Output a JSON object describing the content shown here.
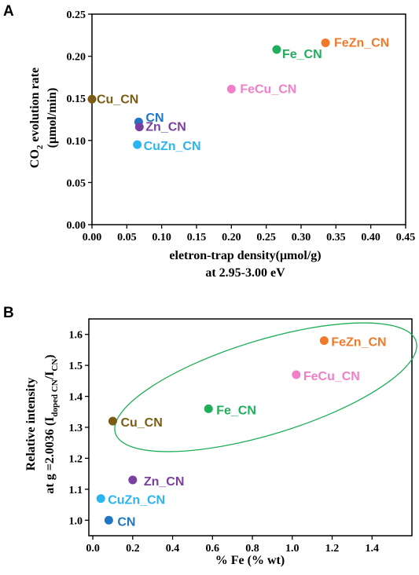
{
  "chart_data": [
    {
      "panel": "A",
      "type": "scatter",
      "xlabel": "eletron-trap density(μmol/g)",
      "xlabel_line2": "at 2.95-3.00 eV",
      "ylabel_line1_main": "CO",
      "ylabel_line1_sub": "2",
      "ylabel_line1_tail": " evolution rate",
      "ylabel_line2": "(μmol/min)",
      "xlim": [
        0,
        0.45
      ],
      "ylim": [
        0,
        0.25
      ],
      "xticks": [
        "0.00",
        "0.05",
        "0.10",
        "0.15",
        "0.20",
        "0.25",
        "0.30",
        "0.35",
        "0.40",
        "0.45"
      ],
      "yticks": [
        "0.00",
        "0.05",
        "0.10",
        "0.15",
        "0.20",
        "0.25"
      ],
      "points": [
        {
          "label": "Cu_CN",
          "x": 0.0,
          "y": 0.149,
          "color": "#7a5c14"
        },
        {
          "label": "CN",
          "x": 0.067,
          "y": 0.122,
          "color": "#1f77c4"
        },
        {
          "label": "Zn_CN",
          "x": 0.068,
          "y": 0.116,
          "color": "#7b3fa0"
        },
        {
          "label": "CuZn_CN",
          "x": 0.065,
          "y": 0.095,
          "color": "#2ab5f0"
        },
        {
          "label": "FeCu_CN",
          "x": 0.2,
          "y": 0.161,
          "color": "#f27ec8"
        },
        {
          "label": "Fe_CN",
          "x": 0.265,
          "y": 0.208,
          "color": "#1fae5a"
        },
        {
          "label": "FeZn_CN",
          "x": 0.335,
          "y": 0.216,
          "color": "#f07a2a"
        }
      ]
    },
    {
      "panel": "B",
      "type": "scatter",
      "xlabel": "% Fe (% wt)",
      "ylabel_line1": "Relative intensity",
      "ylabel_line2_main": "at g =2.0036 (I",
      "ylabel_line2_sub1": "doped CN",
      "ylabel_line2_mid": "/I",
      "ylabel_line2_sub2": "CN",
      "ylabel_line2_tail": ")",
      "xlim": [
        -0.02,
        1.6
      ],
      "ylim": [
        0.95,
        1.65
      ],
      "xticks": [
        "0.0",
        "0.2",
        "0.4",
        "0.6",
        "0.8",
        "1.0",
        "1.2",
        "1.4"
      ],
      "yticks": [
        "1.0",
        "1.1",
        "1.2",
        "1.3",
        "1.4",
        "1.5",
        "1.6"
      ],
      "points": [
        {
          "label": "FeZn_CN",
          "x": 1.16,
          "y": 1.58,
          "color": "#f07a2a"
        },
        {
          "label": "FeCu_CN",
          "x": 1.02,
          "y": 1.47,
          "color": "#f27ec8"
        },
        {
          "label": "Fe_CN",
          "x": 0.58,
          "y": 1.36,
          "color": "#1fae5a"
        },
        {
          "label": "Cu_CN",
          "x": 0.1,
          "y": 1.32,
          "color": "#7a5c14"
        },
        {
          "label": "Zn_CN",
          "x": 0.2,
          "y": 1.13,
          "color": "#7b3fa0"
        },
        {
          "label": "CuZn_CN",
          "x": 0.04,
          "y": 1.07,
          "color": "#2ab5f0"
        },
        {
          "label": "CN",
          "x": 0.08,
          "y": 1.0,
          "color": "#1f77c4"
        }
      ],
      "annotation": {
        "shape": "ellipse",
        "color": "#1fae5a"
      }
    }
  ]
}
